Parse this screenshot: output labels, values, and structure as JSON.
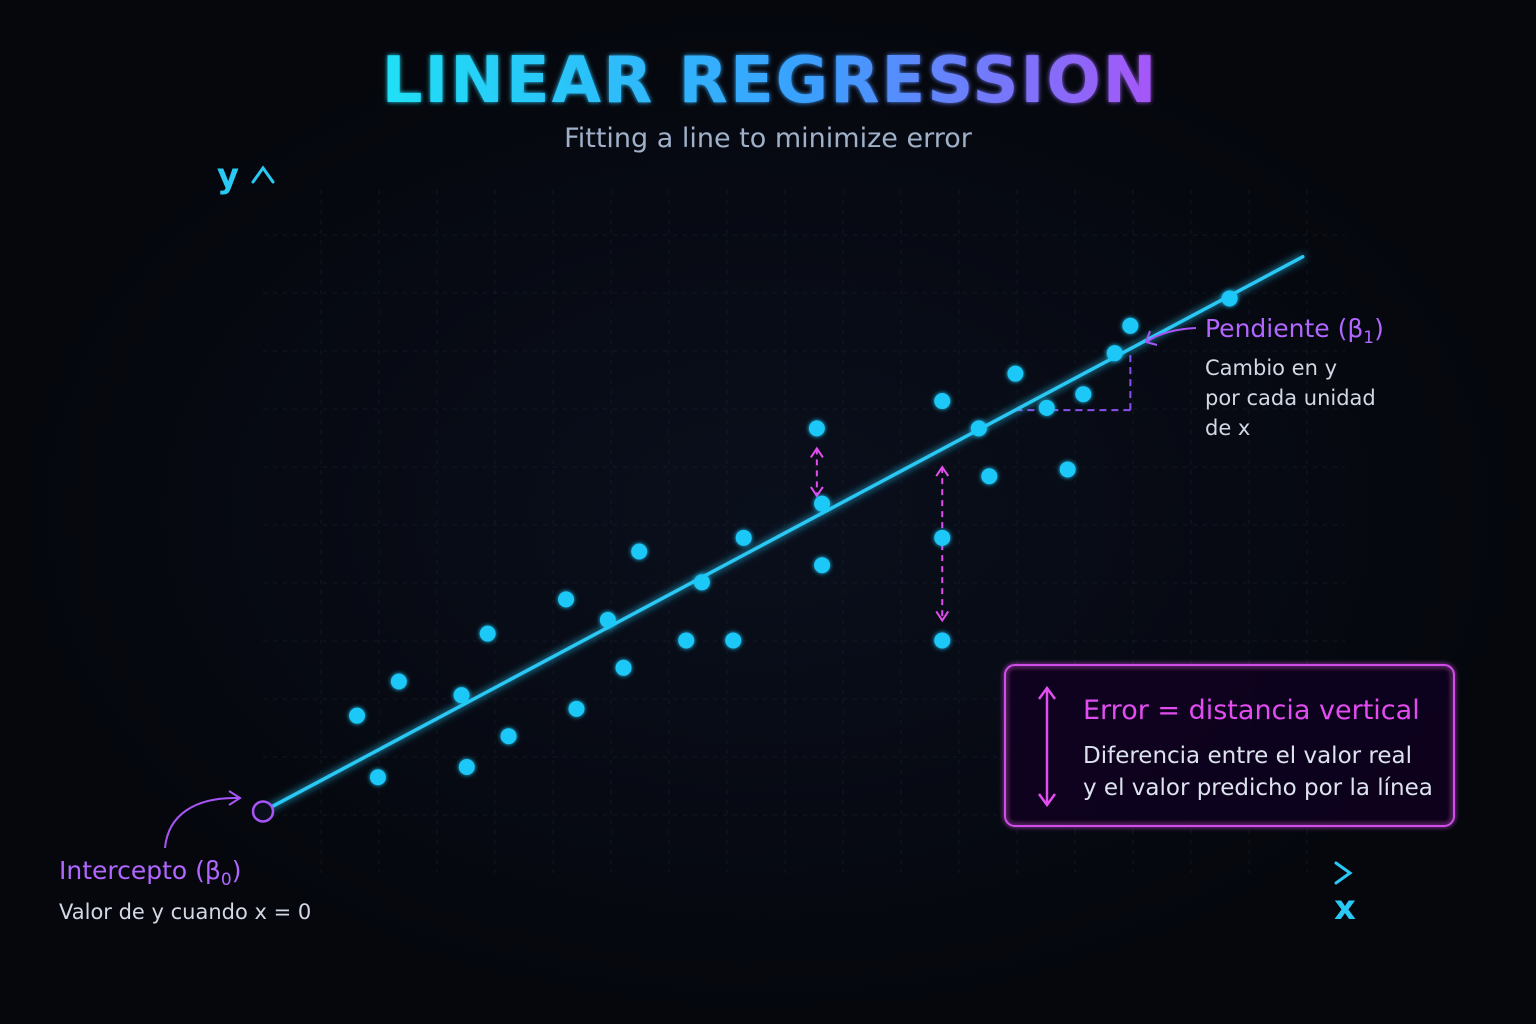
{
  "colors": {
    "accent_cyan": "#29c8f5",
    "accent_blue": "#2b7fff",
    "accent_purple": "#a855f7",
    "accent_magenta": "#e24df0",
    "background": "#05070d"
  },
  "chart_data": {
    "type": "scatter",
    "title": "LINEAR REGRESSION",
    "subtitle": "Fitting a line to minimize error",
    "xlabel": "x",
    "ylabel": "y",
    "xlim": [
      0,
      10
    ],
    "ylim": [
      0,
      10
    ],
    "grid": true,
    "points": [
      [
        0.9,
        2.3
      ],
      [
        1.1,
        1.4
      ],
      [
        1.3,
        2.8
      ],
      [
        1.9,
        2.6
      ],
      [
        1.95,
        1.55
      ],
      [
        2.15,
        3.5
      ],
      [
        2.35,
        2.0
      ],
      [
        2.9,
        4.0
      ],
      [
        3.0,
        2.4
      ],
      [
        3.3,
        3.7
      ],
      [
        3.45,
        3.0
      ],
      [
        3.6,
        4.7
      ],
      [
        4.05,
        3.4
      ],
      [
        4.2,
        4.25
      ],
      [
        4.5,
        3.4
      ],
      [
        4.6,
        4.9
      ],
      [
        5.3,
        6.5
      ],
      [
        5.35,
        5.4
      ],
      [
        5.35,
        4.5
      ],
      [
        6.5,
        4.9
      ],
      [
        6.5,
        3.4
      ],
      [
        6.5,
        6.9
      ],
      [
        6.85,
        6.5
      ],
      [
        6.95,
        5.8
      ],
      [
        7.2,
        7.3
      ],
      [
        7.5,
        6.8
      ],
      [
        7.7,
        5.9
      ],
      [
        7.85,
        7.0
      ],
      [
        8.15,
        7.6
      ],
      [
        8.3,
        8.0
      ],
      [
        9.25,
        8.4
      ]
    ],
    "regression_line": {
      "intercept": 0.9,
      "slope": 0.815,
      "x_end": 9.95
    },
    "residuals_highlighted": [
      {
        "x": 5.3,
        "y": 6.5
      },
      {
        "x": 6.5,
        "y": 3.4
      }
    ],
    "slope_triangle": {
      "x_start": 7.2,
      "x_end": 8.3
    }
  },
  "annotations": {
    "intercept": {
      "title": "Intercepto (β",
      "sub": "0",
      "close": ")",
      "text": "Valor de y cuando x = 0"
    },
    "slope": {
      "title": "Pendiente (β",
      "sub": "1",
      "close": ")",
      "lines": [
        "Cambio en y",
        "por cada unidad",
        "de x"
      ]
    },
    "error_box": {
      "title": "Error = distancia vertical",
      "lines": [
        "Diferencia entre el valor real",
        "y el valor predicho por la línea"
      ]
    }
  }
}
